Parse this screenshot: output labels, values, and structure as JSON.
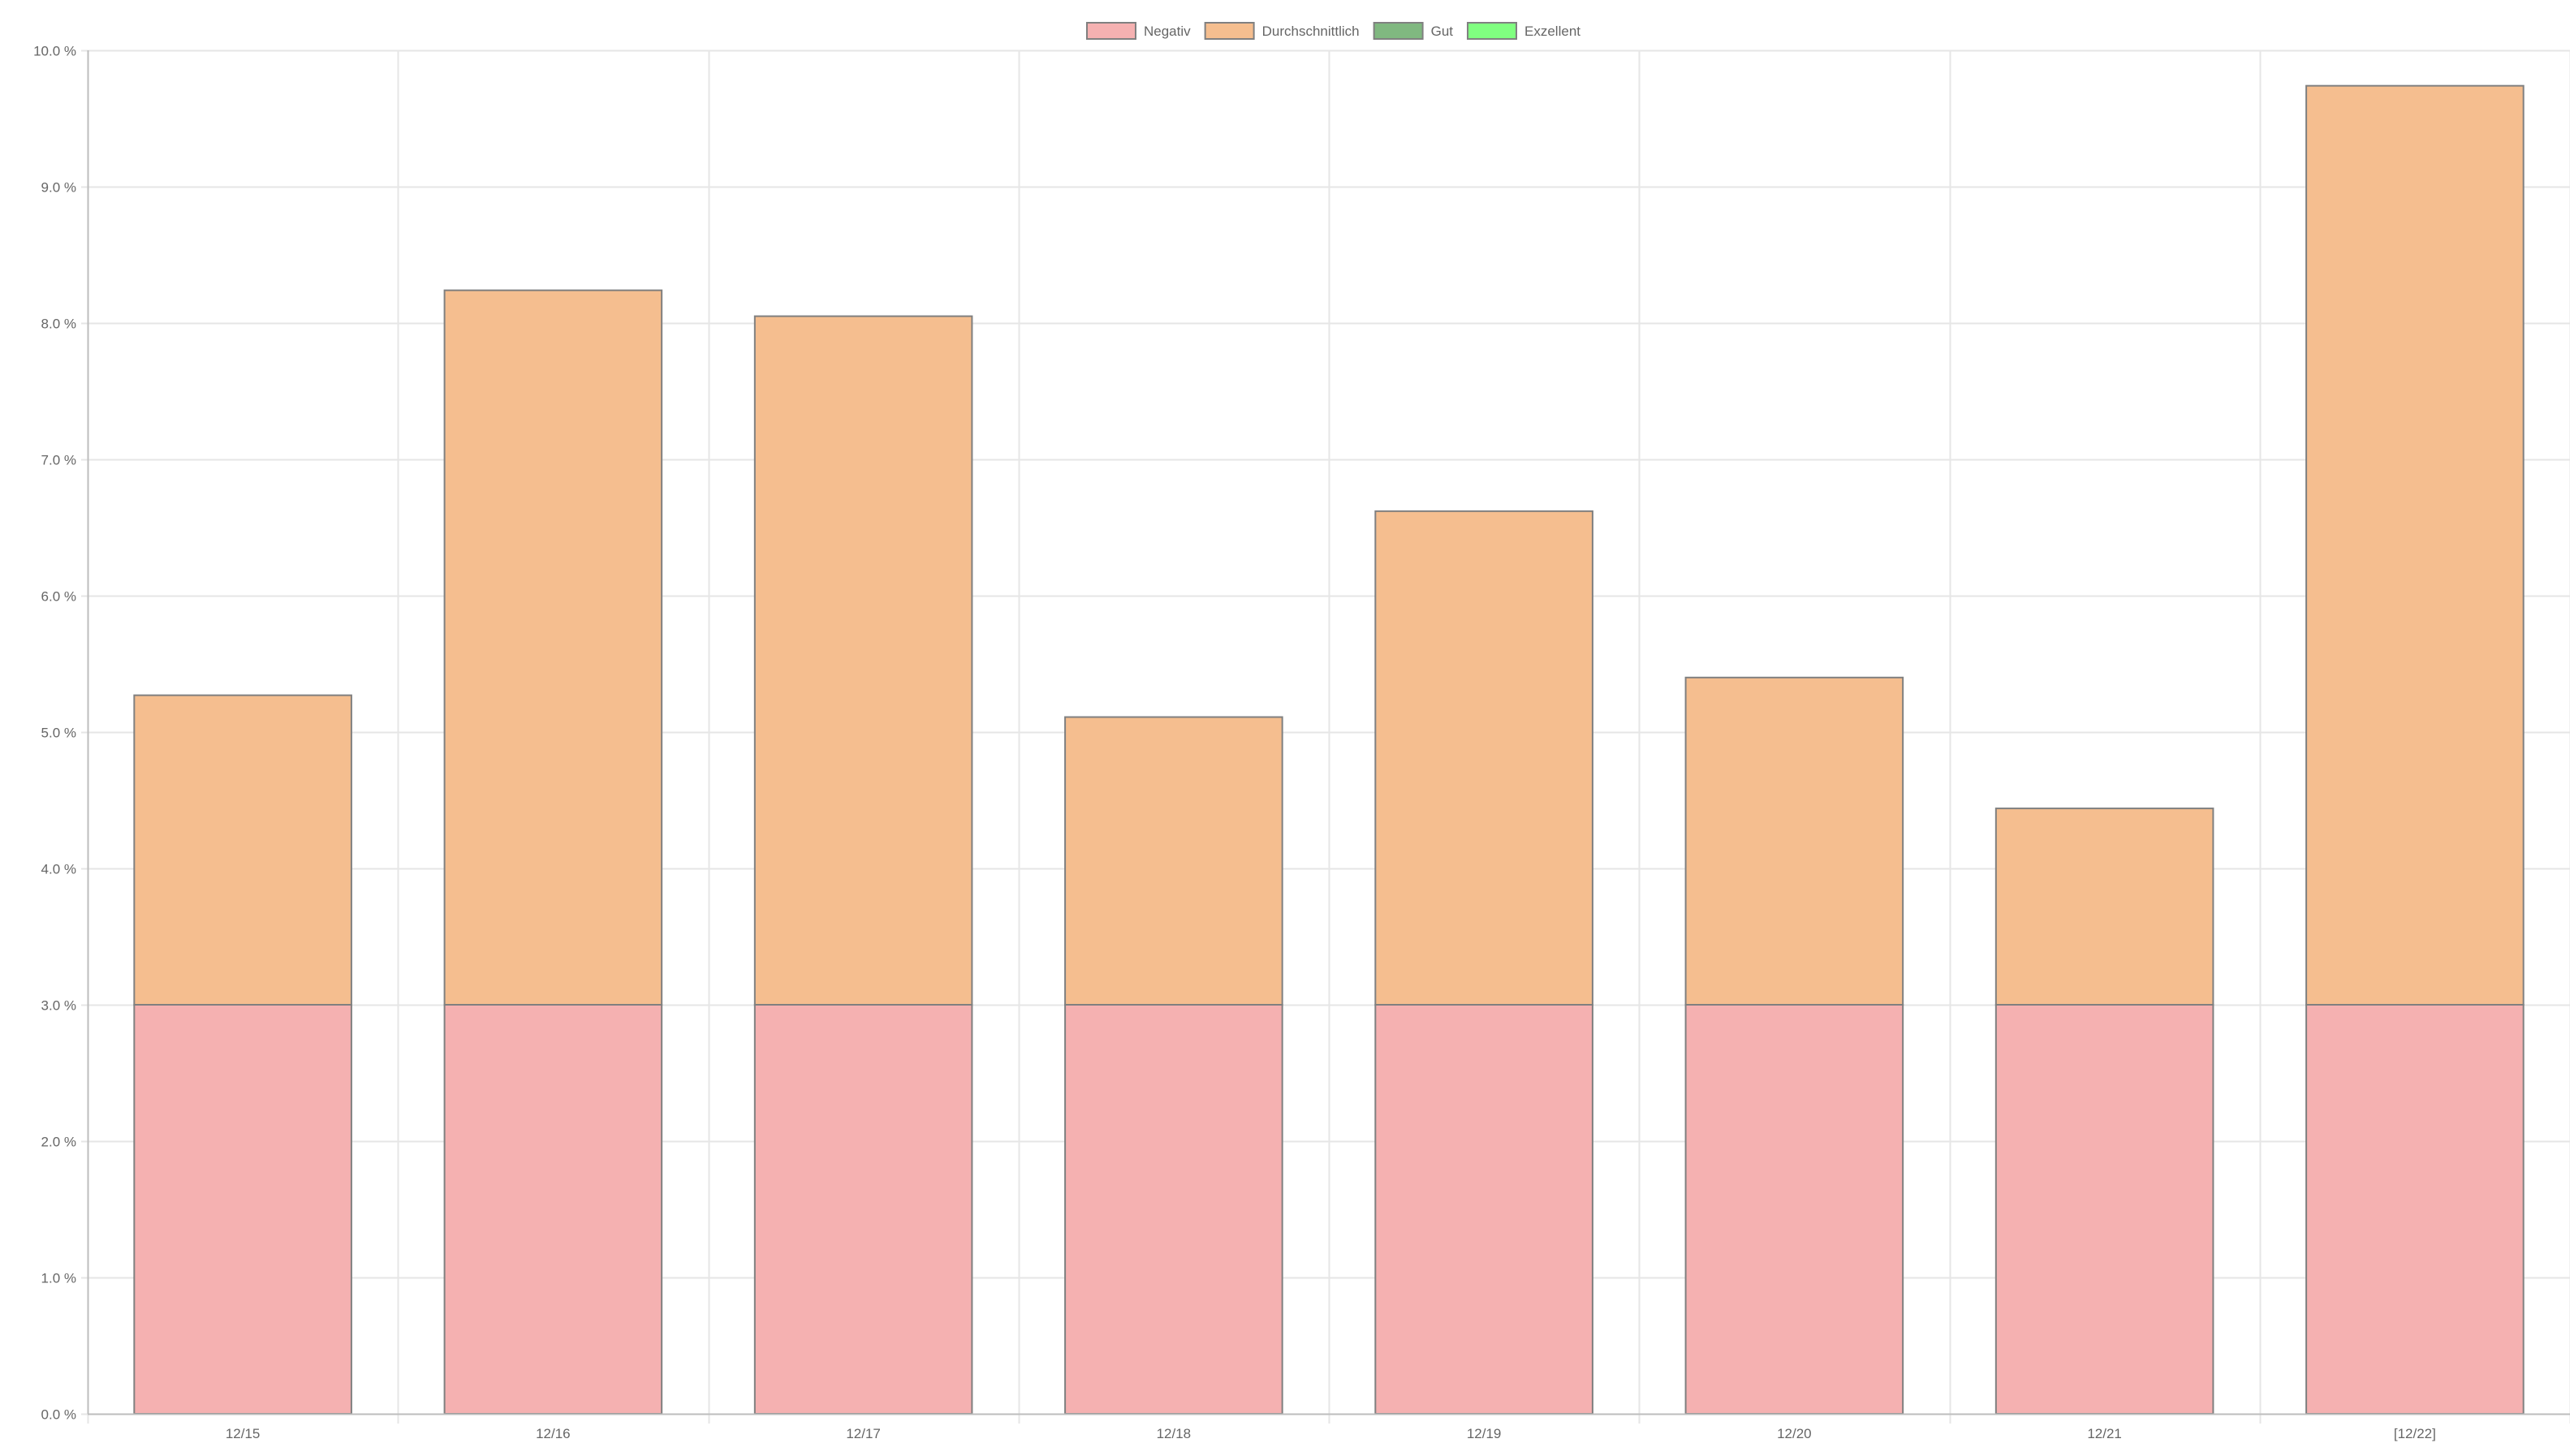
{
  "chart_data": {
    "type": "bar",
    "stacked": true,
    "categories": [
      "12/15",
      "12/16",
      "12/17",
      "12/18",
      "12/19",
      "12/20",
      "12/21",
      "[12/22]"
    ],
    "series": [
      {
        "name": "Negativ",
        "color": "#f5b1b1",
        "values": [
          3.0,
          3.0,
          3.0,
          3.0,
          3.0,
          3.0,
          3.0,
          3.0
        ]
      },
      {
        "name": "Durchschnittlich",
        "color": "#f5be8f",
        "values": [
          2.27,
          5.24,
          5.05,
          2.11,
          3.62,
          2.4,
          1.44,
          6.74
        ]
      },
      {
        "name": "Gut",
        "color": "#80b880",
        "values": [
          0,
          0,
          0,
          0,
          0,
          0,
          0,
          0
        ]
      },
      {
        "name": "Exzellent",
        "color": "#80ff80",
        "values": [
          0,
          0,
          0,
          0,
          0,
          0,
          0,
          0
        ]
      }
    ],
    "ylim": [
      0,
      10
    ],
    "y_ticks": [
      "0.0 %",
      "1.0 %",
      "2.0 %",
      "3.0 %",
      "4.0 %",
      "5.0 %",
      "6.0 %",
      "7.0 %",
      "8.0 %",
      "9.0 %",
      "10.0 %"
    ],
    "y_tick_values": [
      0,
      1,
      2,
      3,
      4,
      5,
      6,
      7,
      8,
      9,
      10
    ],
    "xlabel": "",
    "ylabel": "",
    "grid": true,
    "legend_position": "top-center",
    "bar_border_color": "#808080",
    "grid_color": "#e6e6e6",
    "axis_color": "#bdbdbd",
    "tick_color": "#666666"
  }
}
